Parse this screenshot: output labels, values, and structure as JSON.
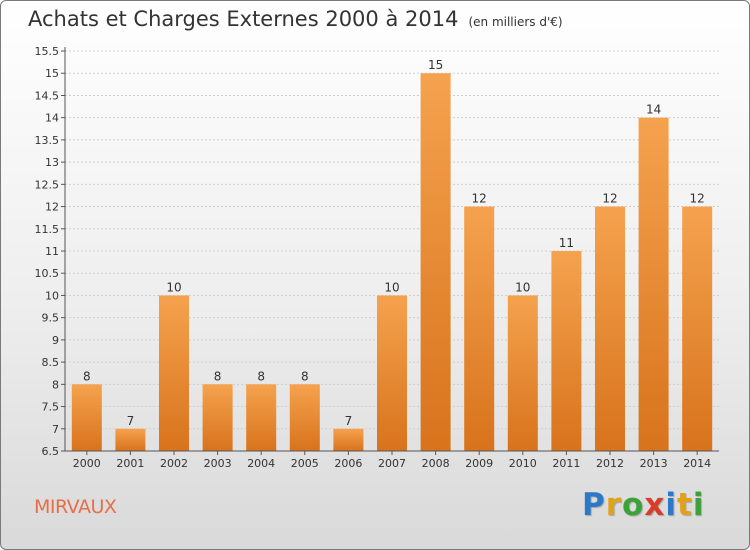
{
  "header": {
    "title": "Achats et Charges Externes 2000 à 2014",
    "unit": "(en milliers d'€)"
  },
  "footer": {
    "commune": "MIRVAUX",
    "logo_letters": [
      {
        "char": "P",
        "color": "#2b79c7"
      },
      {
        "char": "r",
        "color": "#e0a21b"
      },
      {
        "char": "o",
        "color": "#3da13a"
      },
      {
        "char": "x",
        "color": "#d93d2a"
      },
      {
        "char": "i",
        "color": "#2b79c7"
      },
      {
        "char": "t",
        "color": "#e0a21b"
      },
      {
        "char": "i",
        "color": "#3da13a"
      }
    ]
  },
  "chart_data": {
    "type": "bar",
    "categories": [
      "2000",
      "2001",
      "2002",
      "2003",
      "2004",
      "2005",
      "2006",
      "2007",
      "2008",
      "2009",
      "2010",
      "2011",
      "2012",
      "2013",
      "2014"
    ],
    "values": [
      8,
      7,
      10,
      8,
      8,
      8,
      7,
      10,
      15,
      12,
      10,
      11,
      12,
      14,
      12
    ],
    "data_labels": [
      "8",
      "7",
      "10",
      "8",
      "8",
      "8",
      "7",
      "10",
      "15",
      "12",
      "10",
      "11",
      "12",
      "14",
      "12"
    ],
    "yticks": [
      6.5,
      7,
      7.5,
      8,
      8.5,
      9,
      9.5,
      10,
      10.5,
      11,
      11.5,
      12,
      12.5,
      13,
      13.5,
      14,
      14.5,
      15,
      15.5
    ],
    "ytick_labels": [
      "6.5",
      "7",
      "7.5",
      "8",
      "8.5",
      "9",
      "9.5",
      "10",
      "10.5",
      "11",
      "11.5",
      "12",
      "12.5",
      "13",
      "13.5",
      "14",
      "14.5",
      "15",
      "15.5"
    ],
    "ylim": [
      6.5,
      15.5
    ],
    "title": "Achats et Charges Externes 2000 à 2014",
    "xlabel": "",
    "ylabel": "",
    "grid": "horizontal",
    "bar_color_top": "#f5a24e",
    "bar_color_bottom": "#d8731c"
  }
}
